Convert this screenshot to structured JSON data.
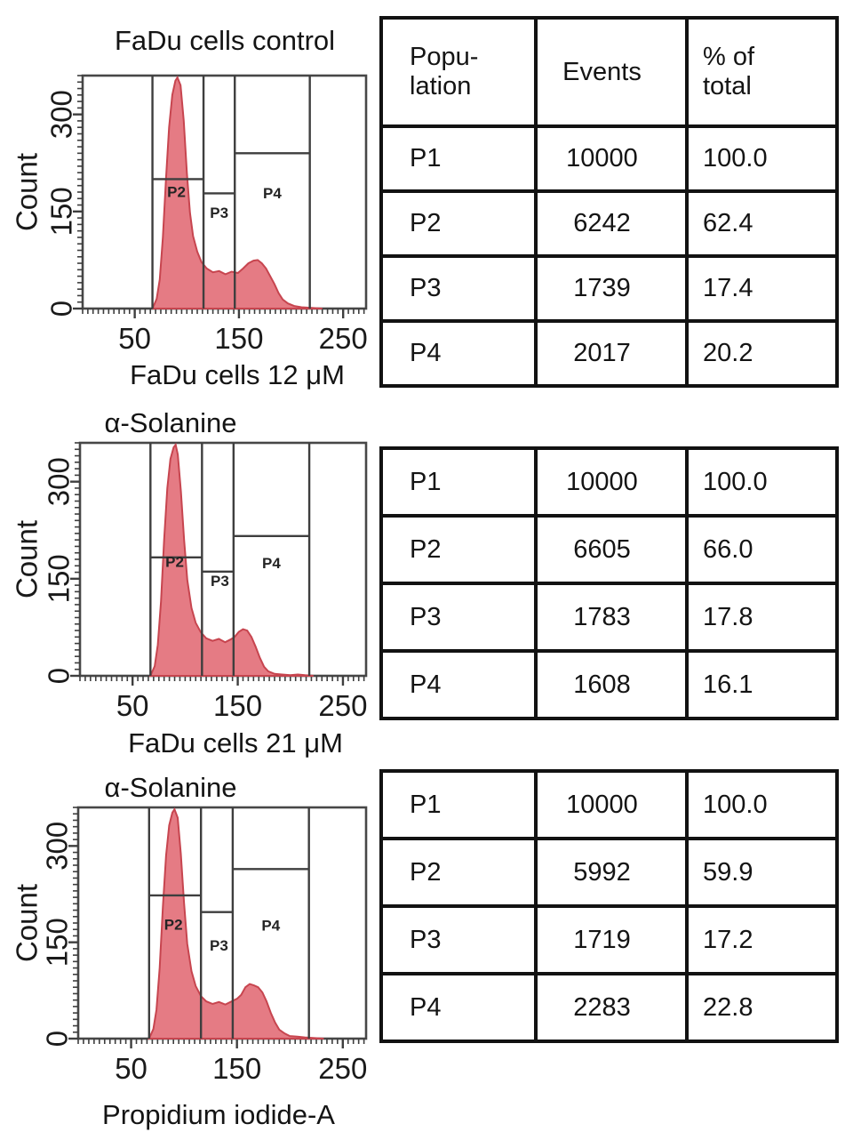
{
  "colors": {
    "hist_fill": "#e57b84",
    "hist_stroke": "#c7454f",
    "gate_line": "#3e3e3e",
    "frame": "#474747",
    "text": "#161616",
    "table_border": "#121212"
  },
  "chart_data": {
    "type": "area",
    "xlabel": "Propidium iodide-A",
    "ylabel": "Count",
    "xlim": [
      0,
      272
    ],
    "ylim": [
      0,
      360
    ],
    "xticks": [
      50,
      150,
      250
    ],
    "yticks": [
      0,
      150,
      300
    ],
    "plots": [
      {
        "title_lines": [
          "FaDu cells control"
        ],
        "gates": {
          "verticals": [
            67,
            116,
            146,
            218
          ],
          "regions": [
            {
              "name": "P2",
              "x1": 67,
              "x2": 116,
              "y": 200,
              "label_x": 90,
              "label_y": 180
            },
            {
              "name": "P3",
              "x1": 116,
              "x2": 146,
              "y": 178,
              "label_x": 131,
              "label_y": 148
            },
            {
              "name": "P4",
              "x1": 146,
              "x2": 218,
              "y": 240,
              "label_x": 182,
              "label_y": 178
            }
          ]
        },
        "curve": [
          [
            67,
            0
          ],
          [
            71,
            15
          ],
          [
            74,
            45
          ],
          [
            77,
            110
          ],
          [
            80,
            200
          ],
          [
            83,
            280
          ],
          [
            86,
            330
          ],
          [
            89,
            352
          ],
          [
            91,
            357
          ],
          [
            94,
            345
          ],
          [
            97,
            290
          ],
          [
            100,
            210
          ],
          [
            103,
            148
          ],
          [
            106,
            112
          ],
          [
            110,
            88
          ],
          [
            114,
            72
          ],
          [
            119,
            62
          ],
          [
            125,
            56
          ],
          [
            131,
            58
          ],
          [
            137,
            53
          ],
          [
            143,
            57
          ],
          [
            149,
            55
          ],
          [
            154,
            62
          ],
          [
            159,
            70
          ],
          [
            164,
            74
          ],
          [
            168,
            75
          ],
          [
            172,
            70
          ],
          [
            176,
            62
          ],
          [
            180,
            50
          ],
          [
            184,
            38
          ],
          [
            188,
            24
          ],
          [
            192,
            14
          ],
          [
            197,
            8
          ],
          [
            203,
            4
          ],
          [
            210,
            2
          ],
          [
            220,
            1
          ],
          [
            230,
            0
          ]
        ]
      },
      {
        "title_lines": [
          "FaDu cells 12 μM",
          "α-Solanine"
        ],
        "gates": {
          "verticals": [
            67,
            116,
            146,
            218
          ],
          "regions": [
            {
              "name": "P2",
              "x1": 67,
              "x2": 116,
              "y": 183,
              "label_x": 90,
              "label_y": 176
            },
            {
              "name": "P3",
              "x1": 116,
              "x2": 146,
              "y": 161,
              "label_x": 133,
              "label_y": 146
            },
            {
              "name": "P4",
              "x1": 146,
              "x2": 218,
              "y": 216,
              "label_x": 182,
              "label_y": 174
            }
          ]
        },
        "curve": [
          [
            67,
            0
          ],
          [
            71,
            15
          ],
          [
            74,
            48
          ],
          [
            77,
            115
          ],
          [
            80,
            210
          ],
          [
            83,
            290
          ],
          [
            86,
            335
          ],
          [
            89,
            353
          ],
          [
            91,
            357
          ],
          [
            93,
            342
          ],
          [
            96,
            285
          ],
          [
            99,
            210
          ],
          [
            102,
            148
          ],
          [
            106,
            105
          ],
          [
            110,
            82
          ],
          [
            115,
            67
          ],
          [
            120,
            58
          ],
          [
            126,
            54
          ],
          [
            132,
            57
          ],
          [
            138,
            52
          ],
          [
            143,
            56
          ],
          [
            147,
            60
          ],
          [
            151,
            68
          ],
          [
            155,
            72
          ],
          [
            159,
            70
          ],
          [
            163,
            60
          ],
          [
            167,
            45
          ],
          [
            171,
            28
          ],
          [
            175,
            14
          ],
          [
            179,
            7
          ],
          [
            185,
            3
          ],
          [
            192,
            2
          ],
          [
            200,
            1
          ],
          [
            207,
            2
          ],
          [
            214,
            1
          ],
          [
            222,
            0
          ]
        ]
      },
      {
        "title_lines": [
          "FaDu cells 21 μM",
          "α-Solanine"
        ],
        "gates": {
          "verticals": [
            67,
            116,
            146,
            218
          ],
          "regions": [
            {
              "name": "P2",
              "x1": 67,
              "x2": 116,
              "y": 223,
              "label_x": 90,
              "label_y": 177
            },
            {
              "name": "P3",
              "x1": 116,
              "x2": 146,
              "y": 197,
              "label_x": 133,
              "label_y": 145
            },
            {
              "name": "P4",
              "x1": 146,
              "x2": 218,
              "y": 264,
              "label_x": 182,
              "label_y": 176
            }
          ]
        },
        "curve": [
          [
            67,
            0
          ],
          [
            71,
            15
          ],
          [
            74,
            45
          ],
          [
            77,
            110
          ],
          [
            80,
            205
          ],
          [
            83,
            285
          ],
          [
            86,
            332
          ],
          [
            89,
            352
          ],
          [
            91,
            357
          ],
          [
            94,
            344
          ],
          [
            97,
            288
          ],
          [
            100,
            212
          ],
          [
            103,
            148
          ],
          [
            107,
            105
          ],
          [
            111,
            82
          ],
          [
            116,
            66
          ],
          [
            121,
            58
          ],
          [
            127,
            54
          ],
          [
            133,
            57
          ],
          [
            139,
            53
          ],
          [
            145,
            58
          ],
          [
            150,
            62
          ],
          [
            154,
            68
          ],
          [
            158,
            80
          ],
          [
            162,
            85
          ],
          [
            166,
            83
          ],
          [
            170,
            80
          ],
          [
            174,
            72
          ],
          [
            178,
            58
          ],
          [
            182,
            40
          ],
          [
            186,
            25
          ],
          [
            190,
            14
          ],
          [
            195,
            8
          ],
          [
            200,
            4
          ],
          [
            207,
            3
          ],
          [
            214,
            2
          ],
          [
            222,
            1
          ],
          [
            232,
            0
          ]
        ]
      }
    ]
  },
  "tables": [
    {
      "header": [
        [
          "Popu-",
          "lation"
        ],
        [
          "Events"
        ],
        [
          "% of",
          "total"
        ]
      ],
      "rows": [
        [
          "P1",
          "10000",
          "100.0"
        ],
        [
          "P2",
          "6242",
          "62.4"
        ],
        [
          "P3",
          "1739",
          "17.4"
        ],
        [
          "P4",
          "2017",
          "20.2"
        ]
      ]
    },
    {
      "rows": [
        [
          "P1",
          "10000",
          "100.0"
        ],
        [
          "P2",
          "6605",
          "66.0"
        ],
        [
          "P3",
          "1783",
          "17.8"
        ],
        [
          "P4",
          "1608",
          "16.1"
        ]
      ]
    },
    {
      "rows": [
        [
          "P1",
          "10000",
          "100.0"
        ],
        [
          "P2",
          "5992",
          "59.9"
        ],
        [
          "P3",
          "1719",
          "17.2"
        ],
        [
          "P4",
          "2283",
          "22.8"
        ]
      ]
    }
  ]
}
